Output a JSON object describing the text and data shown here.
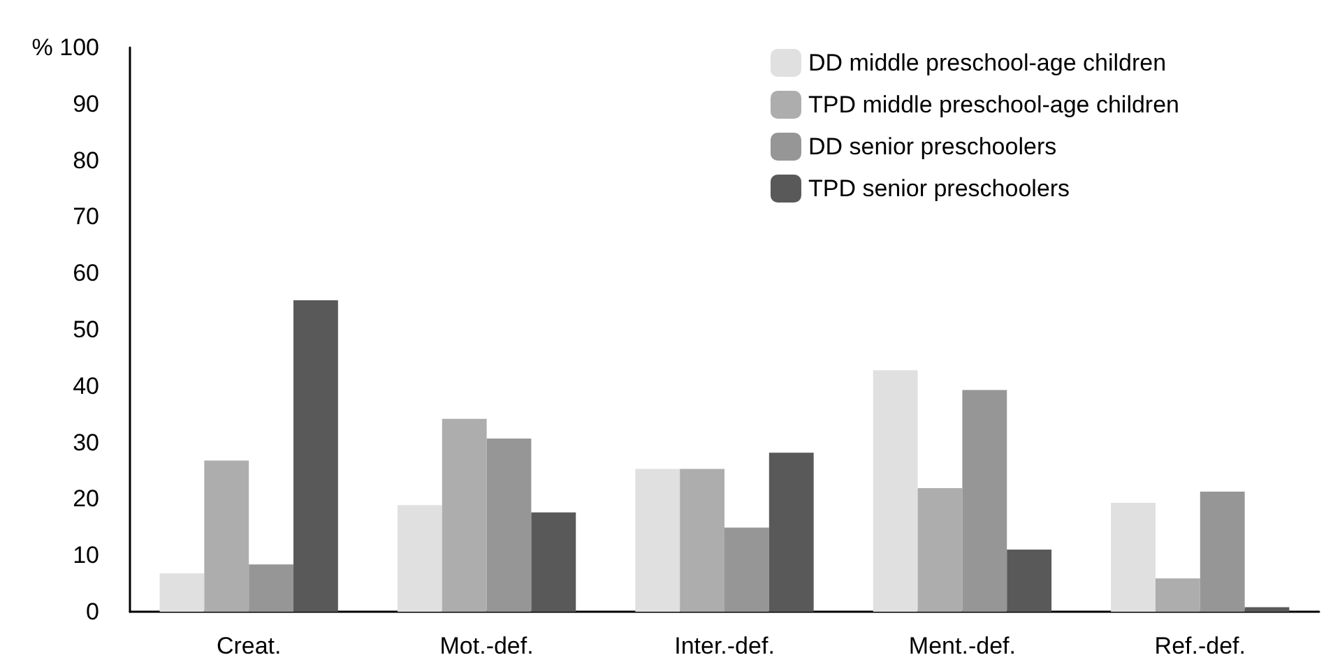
{
  "chart_data": {
    "type": "bar",
    "categories": [
      "Creat.",
      "Mot.-def.",
      "Inter.-def.",
      "Ment.-def.",
      "Ref.-def."
    ],
    "series": [
      {
        "name": "DD middle preschool-age children",
        "color": "#e0e0e0",
        "values": [
          6.8,
          18.9,
          25.3,
          42.8,
          19.3
        ]
      },
      {
        "name": "TPD middle preschool-age children",
        "color": "#adadad",
        "values": [
          26.8,
          34.2,
          25.3,
          21.9,
          5.9
        ]
      },
      {
        "name": "DD senior preschoolers",
        "color": "#969696",
        "values": [
          8.4,
          30.7,
          14.9,
          39.3,
          21.3
        ]
      },
      {
        "name": "TPD senior preschoolers",
        "color": "#595959",
        "values": [
          55.2,
          17.6,
          28.2,
          11.0,
          0.8
        ]
      }
    ],
    "ylim": [
      0,
      100
    ],
    "yticks": [
      0,
      10,
      20,
      30,
      40,
      50,
      60,
      70,
      80,
      90,
      {
        "value": 100,
        "label": "% 100"
      }
    ],
    "grid": false,
    "legend": "top right"
  }
}
